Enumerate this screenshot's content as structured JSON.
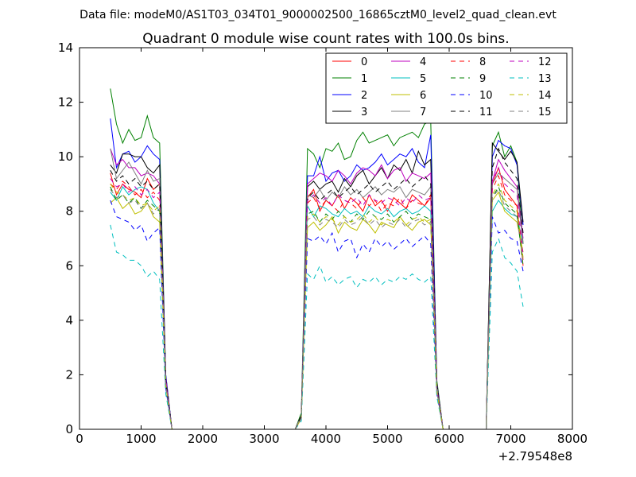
{
  "header": "Data file: modeM0/AS1T03_034T01_9000002500_16865cztM0_level2_quad_clean.evt",
  "chart_data": {
    "type": "line",
    "title": "Quadrant 0 module wise count rates with 100.0s bins.",
    "x_offset_label": "+2.79548e8",
    "xlim": [
      0,
      8000
    ],
    "ylim": [
      0,
      14
    ],
    "x_ticks": [
      0,
      1000,
      2000,
      3000,
      4000,
      5000,
      6000,
      7000,
      8000
    ],
    "y_ticks": [
      0,
      2,
      4,
      6,
      8,
      10,
      12,
      14
    ],
    "legend_position": "top-right",
    "segments": [
      {
        "x": [
          500,
          600,
          700,
          800,
          900,
          1000,
          1100,
          1200,
          1300,
          1400,
          1500
        ]
      },
      {
        "x": [
          3500,
          3600,
          3700,
          3800,
          3900,
          4000,
          4100,
          4200,
          4300,
          4400,
          4500,
          4600,
          4700,
          4800,
          4900,
          5000,
          5100,
          5200,
          5300,
          5400,
          5500,
          5600,
          5700,
          5800,
          5900
        ]
      },
      {
        "x": [
          6600,
          6700,
          6800,
          6900,
          7000,
          7100,
          7200
        ]
      }
    ],
    "series": [
      {
        "name": "0",
        "color": "#ff0000",
        "dashed": false,
        "segments": [
          [
            9.4,
            8.6,
            9.0,
            8.8,
            8.7,
            8.5,
            9.2,
            8.8,
            9.0,
            1.8,
            0
          ],
          [
            0,
            0.4,
            8.5,
            8.8,
            8.0,
            8.4,
            8.2,
            8.6,
            8.1,
            8.5,
            8.3,
            8.0,
            8.6,
            8.2,
            8.4,
            8.0,
            8.5,
            8.3,
            8.1,
            8.6,
            8.4,
            8.2,
            8.5,
            1.5,
            0
          ],
          [
            0,
            9.0,
            9.6,
            8.8,
            8.5,
            8.2,
            6.0
          ]
        ]
      },
      {
        "name": "1",
        "color": "#008000",
        "dashed": false,
        "segments": [
          [
            12.5,
            11.2,
            10.5,
            11.0,
            10.6,
            10.7,
            11.5,
            10.7,
            10.5,
            2.0,
            0
          ],
          [
            0,
            0.6,
            10.3,
            10.1,
            9.6,
            10.3,
            10.2,
            10.5,
            9.9,
            10.0,
            10.6,
            10.9,
            10.5,
            10.6,
            10.7,
            10.8,
            10.4,
            10.7,
            10.8,
            10.9,
            10.7,
            11.2,
            11.3,
            1.8,
            0
          ],
          [
            0,
            10.4,
            10.9,
            10.0,
            10.4,
            9.8,
            6.8
          ]
        ]
      },
      {
        "name": "2",
        "color": "#0000ff",
        "dashed": false,
        "segments": [
          [
            11.4,
            9.6,
            10.1,
            10.2,
            9.8,
            10.0,
            10.4,
            10.1,
            9.9,
            2.0,
            0
          ],
          [
            0,
            0.5,
            9.3,
            9.3,
            10.0,
            9.1,
            9.4,
            9.5,
            9.1,
            9.3,
            9.7,
            9.5,
            9.6,
            9.8,
            10.1,
            9.7,
            9.9,
            10.1,
            10.0,
            10.3,
            9.8,
            9.6,
            10.8,
            1.7,
            0
          ],
          [
            0,
            10.0,
            10.6,
            10.4,
            10.3,
            9.7,
            7.5
          ]
        ]
      },
      {
        "name": "3",
        "color": "#000000",
        "dashed": false,
        "segments": [
          [
            9.7,
            9.4,
            10.1,
            10.1,
            10.0,
            10.0,
            9.6,
            9.4,
            9.7,
            1.9,
            0
          ],
          [
            0,
            0.5,
            8.9,
            9.1,
            8.8,
            9.0,
            9.1,
            8.7,
            9.2,
            8.9,
            9.3,
            9.5,
            9.0,
            9.3,
            9.6,
            9.2,
            9.7,
            9.5,
            9.9,
            9.4,
            10.2,
            9.7,
            9.9,
            1.7,
            0
          ],
          [
            0,
            10.5,
            10.2,
            9.9,
            10.2,
            9.8,
            7.6
          ]
        ]
      },
      {
        "name": "4",
        "color": "#bf00bf",
        "dashed": false,
        "segments": [
          [
            10.3,
            9.7,
            9.9,
            9.6,
            9.6,
            9.3,
            9.4,
            9.3,
            9.0,
            1.9,
            0
          ],
          [
            0,
            0.5,
            9.0,
            9.2,
            9.4,
            9.3,
            9.1,
            9.5,
            9.3,
            9.0,
            9.4,
            9.6,
            9.5,
            9.3,
            9.7,
            9.2,
            9.5,
            9.6,
            9.1,
            9.4,
            9.3,
            9.2,
            9.4,
            1.6,
            0
          ],
          [
            0,
            9.1,
            9.9,
            9.5,
            9.2,
            8.9,
            7.0
          ]
        ]
      },
      {
        "name": "5",
        "color": "#00bfbf",
        "dashed": false,
        "segments": [
          [
            8.7,
            8.4,
            8.9,
            8.6,
            8.8,
            8.9,
            8.8,
            8.3,
            8.0,
            1.7,
            0
          ],
          [
            0,
            0.4,
            8.2,
            7.8,
            8.2,
            8.1,
            7.9,
            7.8,
            8.1,
            7.9,
            8.0,
            7.8,
            8.2,
            8.0,
            7.9,
            8.1,
            7.8,
            8.0,
            8.1,
            7.9,
            8.0,
            8.2,
            8.0,
            1.5,
            0
          ],
          [
            0,
            8.0,
            8.4,
            8.1,
            7.9,
            7.8,
            6.8
          ]
        ]
      },
      {
        "name": "6",
        "color": "#bfbf00",
        "dashed": false,
        "segments": [
          [
            8.3,
            8.5,
            8.1,
            8.3,
            7.9,
            8.0,
            8.3,
            7.8,
            7.6,
            1.6,
            0
          ],
          [
            0,
            0.4,
            7.4,
            7.6,
            7.3,
            7.5,
            7.8,
            7.2,
            7.6,
            7.4,
            7.3,
            7.7,
            7.5,
            7.2,
            7.6,
            7.5,
            7.4,
            7.8,
            7.5,
            7.3,
            7.6,
            7.7,
            7.5,
            1.4,
            0
          ],
          [
            0,
            8.4,
            8.7,
            8.0,
            7.8,
            7.6,
            6.5
          ]
        ]
      },
      {
        "name": "7",
        "color": "#808080",
        "dashed": false,
        "segments": [
          [
            10.3,
            9.2,
            9.5,
            9.8,
            9.4,
            9.0,
            9.5,
            9.1,
            9.2,
            1.8,
            0
          ],
          [
            0,
            0.5,
            8.6,
            8.5,
            8.8,
            8.4,
            8.7,
            8.5,
            8.9,
            8.6,
            8.8,
            8.5,
            8.7,
            8.9,
            8.6,
            8.8,
            8.7,
            8.9,
            8.5,
            8.8,
            8.7,
            8.6,
            8.9,
            1.6,
            0
          ],
          [
            0,
            9.0,
            9.4,
            9.2,
            9.0,
            8.8,
            6.8
          ]
        ]
      },
      {
        "name": "8",
        "color": "#ff0000",
        "dashed": true,
        "segments": [
          [
            9.0,
            8.8,
            9.1,
            8.9,
            8.6,
            8.8,
            8.5,
            8.7,
            8.4,
            1.7,
            0
          ],
          [
            0,
            0.4,
            8.3,
            8.5,
            8.1,
            8.4,
            8.2,
            8.0,
            8.4,
            8.3,
            8.1,
            8.5,
            8.2,
            8.4,
            8.0,
            8.3,
            8.2,
            8.5,
            8.1,
            8.4,
            8.3,
            8.2,
            8.6,
            1.5,
            0
          ],
          [
            0,
            8.8,
            9.3,
            8.6,
            8.4,
            8.2,
            6.2
          ]
        ]
      },
      {
        "name": "9",
        "color": "#008000",
        "dashed": true,
        "segments": [
          [
            8.9,
            8.4,
            8.6,
            8.3,
            8.5,
            8.1,
            8.4,
            8.2,
            8.0,
            1.6,
            0
          ],
          [
            0,
            0.4,
            7.9,
            8.0,
            7.6,
            7.9,
            7.7,
            8.0,
            7.8,
            7.6,
            7.9,
            7.7,
            8.0,
            7.8,
            7.7,
            7.9,
            7.6,
            7.8,
            8.0,
            7.7,
            7.9,
            7.8,
            7.7,
            1.4,
            0
          ],
          [
            0,
            8.5,
            8.9,
            8.3,
            8.1,
            7.9,
            6.0
          ]
        ]
      },
      {
        "name": "10",
        "color": "#0000ff",
        "dashed": true,
        "segments": [
          [
            8.4,
            7.8,
            7.7,
            7.6,
            7.3,
            7.5,
            6.9,
            7.2,
            7.4,
            1.5,
            0
          ],
          [
            0,
            0.4,
            7.0,
            6.9,
            7.1,
            6.8,
            7.2,
            6.5,
            6.9,
            7.0,
            6.3,
            6.8,
            6.5,
            7.0,
            6.7,
            6.9,
            6.6,
            6.8,
            7.0,
            6.7,
            6.9,
            7.1,
            6.8,
            1.3,
            0
          ],
          [
            0,
            7.8,
            7.2,
            7.3,
            7.0,
            6.9,
            5.8
          ]
        ]
      },
      {
        "name": "11",
        "color": "#000000",
        "dashed": true,
        "segments": [
          [
            9.5,
            9.1,
            9.3,
            9.0,
            9.2,
            8.9,
            9.1,
            8.8,
            9.0,
            1.8,
            0
          ],
          [
            0,
            0.5,
            8.5,
            8.7,
            8.4,
            8.6,
            8.8,
            8.5,
            8.7,
            8.9,
            8.6,
            8.8,
            9.0,
            8.7,
            8.9,
            9.1,
            8.8,
            9.0,
            9.2,
            8.9,
            9.1,
            9.3,
            9.0,
            1.6,
            0
          ],
          [
            0,
            9.6,
            10.3,
            9.8,
            9.5,
            9.2,
            7.2
          ]
        ]
      },
      {
        "name": "12",
        "color": "#bf00bf",
        "dashed": true,
        "segments": [
          [
            9.2,
            8.9,
            9.0,
            8.7,
            8.9,
            8.6,
            8.8,
            8.5,
            8.7,
            1.7,
            0
          ],
          [
            0,
            0.4,
            8.4,
            8.6,
            8.3,
            8.5,
            8.2,
            8.6,
            8.4,
            8.3,
            8.5,
            8.2,
            8.6,
            8.4,
            8.3,
            8.5,
            8.4,
            8.2,
            8.5,
            8.3,
            8.6,
            8.4,
            8.5,
            1.5,
            0
          ],
          [
            0,
            9.1,
            9.6,
            9.0,
            8.8,
            8.6,
            6.4
          ]
        ]
      },
      {
        "name": "13",
        "color": "#00bfbf",
        "dashed": true,
        "segments": [
          [
            7.5,
            6.5,
            6.4,
            6.2,
            6.2,
            6.0,
            5.6,
            5.8,
            5.5,
            1.3,
            0
          ],
          [
            0,
            0.3,
            5.7,
            5.5,
            6.0,
            5.4,
            5.6,
            5.3,
            5.5,
            5.6,
            5.2,
            5.5,
            5.4,
            5.6,
            5.3,
            5.5,
            5.4,
            5.6,
            5.5,
            5.7,
            5.5,
            5.4,
            5.6,
            1.2,
            0
          ],
          [
            0,
            6.5,
            7.0,
            6.3,
            6.1,
            5.8,
            4.5
          ]
        ]
      },
      {
        "name": "14",
        "color": "#bfbf00",
        "dashed": true,
        "segments": [
          [
            9.0,
            8.7,
            8.6,
            8.4,
            8.5,
            8.2,
            8.3,
            8.0,
            8.2,
            1.6,
            0
          ],
          [
            0,
            0.4,
            7.8,
            7.9,
            7.6,
            7.8,
            7.7,
            7.5,
            7.8,
            7.6,
            7.7,
            7.9,
            7.6,
            7.8,
            7.5,
            7.7,
            7.6,
            7.8,
            7.5,
            7.7,
            7.8,
            7.6,
            7.7,
            1.4,
            0
          ],
          [
            0,
            8.6,
            9.0,
            8.4,
            8.2,
            8.0,
            6.3
          ]
        ]
      },
      {
        "name": "15",
        "color": "#808080",
        "dashed": true,
        "segments": [
          [
            8.8,
            8.5,
            8.6,
            8.3,
            8.4,
            8.1,
            8.3,
            7.9,
            8.1,
            1.6,
            0
          ],
          [
            0,
            0.4,
            7.7,
            7.8,
            7.5,
            7.7,
            7.6,
            7.4,
            7.7,
            7.5,
            7.6,
            7.8,
            7.5,
            7.7,
            7.4,
            7.6,
            7.5,
            7.7,
            7.4,
            7.6,
            7.7,
            7.5,
            7.6,
            1.4,
            0
          ],
          [
            0,
            8.5,
            8.8,
            8.2,
            8.0,
            7.8,
            6.1
          ]
        ]
      }
    ]
  }
}
